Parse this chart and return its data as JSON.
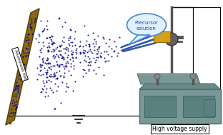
{
  "bg_color": "#ffffff",
  "foil_color": "#8B6914",
  "foil_outline": "#5a4510",
  "label_foil": "Aluminum foil",
  "label_precursor": "Precursor\nsolution",
  "label_hvs": "High voltage supply",
  "dot_color": "#00008B",
  "bubble_edge": "#4488CC",
  "bubble_fill": "#dff0ff",
  "stand_color": "#555555",
  "plate_color": "#7a9898",
  "plate_edge": "#4a7070",
  "box_color": "#7a9898",
  "box_edge": "#4a7070",
  "wire_color": "#111111",
  "needle_color": "#3355aa",
  "foil_stand_color": "#7a5c1e"
}
